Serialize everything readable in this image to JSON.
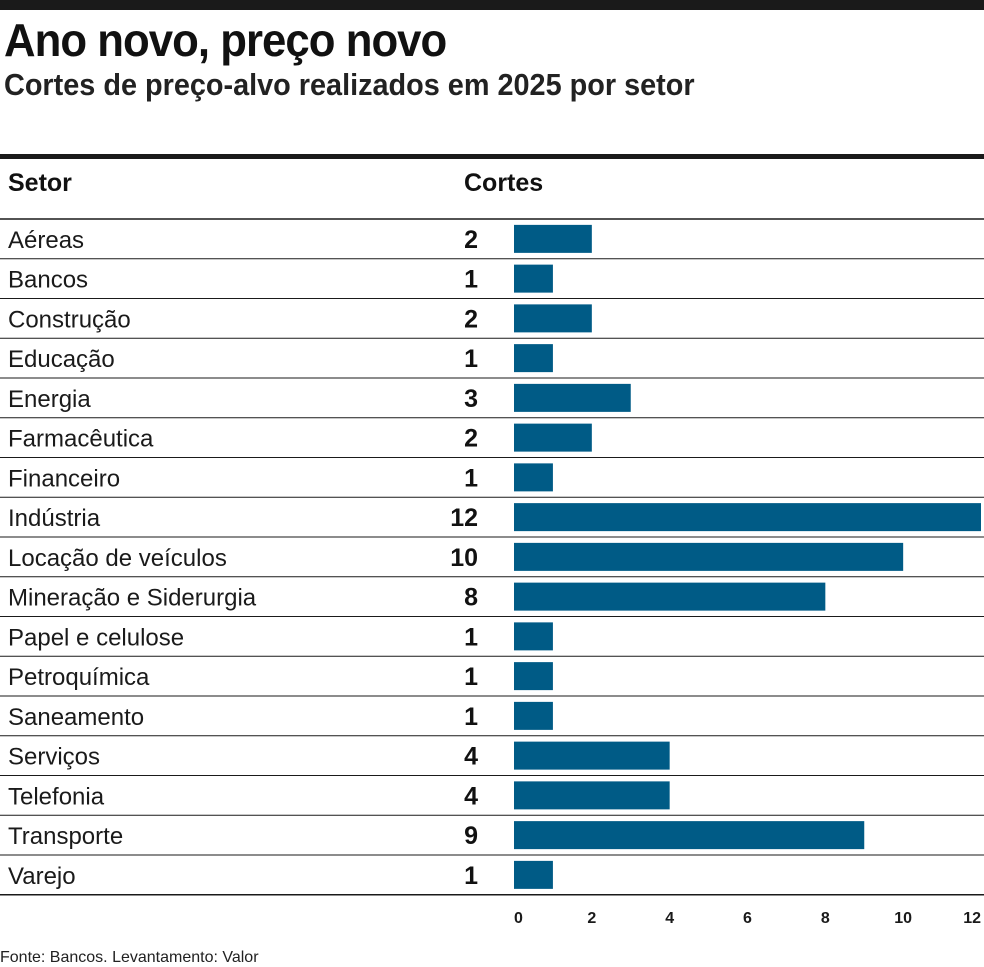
{
  "header": {
    "title": "Ano novo, preço novo",
    "subtitle": "Cortes de preço-alvo realizados em 2025 por setor"
  },
  "table": {
    "col_setor": "Setor",
    "col_cortes": "Cortes"
  },
  "footer": {
    "source": "Fonte: Bancos. Levantamento: Valor"
  },
  "colors": {
    "bar": "#005b86",
    "rule": "#1a1a1a"
  },
  "chart_data": {
    "type": "bar",
    "orientation": "horizontal",
    "categories": [
      "Aéreas",
      "Bancos",
      "Construção",
      "Educação",
      "Energia",
      "Farmacêutica",
      "Financeiro",
      "Indústria",
      "Locação de veículos",
      "Mineração e Siderurgia",
      "Papel e celulose",
      "Petroquímica",
      "Saneamento",
      "Serviços",
      "Telefonia",
      "Transporte",
      "Varejo"
    ],
    "values": [
      2,
      1,
      2,
      1,
      3,
      2,
      1,
      12,
      10,
      8,
      1,
      1,
      1,
      4,
      4,
      9,
      1
    ],
    "xticks": [
      0,
      2,
      4,
      6,
      8,
      10,
      12
    ],
    "xlim": [
      0,
      12
    ],
    "grid": false,
    "legend": "none"
  }
}
